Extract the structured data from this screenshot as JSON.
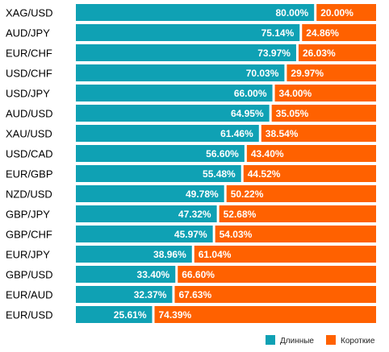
{
  "colors": {
    "long": "#0fa1b4",
    "short": "#ff6100"
  },
  "chart_data": {
    "type": "bar",
    "orientation": "horizontal",
    "stacked": true,
    "percent_stacked": true,
    "categories": [
      "XAG/USD",
      "AUD/JPY",
      "EUR/CHF",
      "USD/CHF",
      "USD/JPY",
      "AUD/USD",
      "XAU/USD",
      "USD/CAD",
      "EUR/GBP",
      "NZD/USD",
      "GBP/JPY",
      "GBP/CHF",
      "EUR/JPY",
      "GBP/USD",
      "EUR/AUD",
      "EUR/USD"
    ],
    "series": [
      {
        "name": "Длинные",
        "color": "#0fa1b4",
        "values": [
          80.0,
          75.14,
          73.97,
          70.03,
          66.0,
          64.95,
          61.46,
          56.6,
          55.48,
          49.78,
          47.32,
          45.97,
          38.96,
          33.4,
          32.37,
          25.61
        ],
        "labels": [
          "80.00%",
          "75.14%",
          "73.97%",
          "70.03%",
          "66.00%",
          "64.95%",
          "61.46%",
          "56.60%",
          "55.48%",
          "49.78%",
          "47.32%",
          "45.97%",
          "38.96%",
          "33.40%",
          "32.37%",
          "25.61%"
        ]
      },
      {
        "name": "Короткие",
        "color": "#ff6100",
        "values": [
          20.0,
          24.86,
          26.03,
          29.97,
          34.0,
          35.05,
          38.54,
          43.4,
          44.52,
          50.22,
          52.68,
          54.03,
          61.04,
          66.6,
          67.63,
          74.39
        ],
        "labels": [
          "20.00%",
          "24.86%",
          "26.03%",
          "29.97%",
          "34.00%",
          "35.05%",
          "38.54%",
          "43.40%",
          "44.52%",
          "50.22%",
          "52.68%",
          "54.03%",
          "61.04%",
          "66.60%",
          "67.63%",
          "74.39%"
        ]
      }
    ],
    "xlim": [
      0,
      100
    ],
    "grid": false,
    "legend": {
      "position": "bottom-right",
      "entries": [
        "Длинные",
        "Короткие"
      ]
    }
  }
}
